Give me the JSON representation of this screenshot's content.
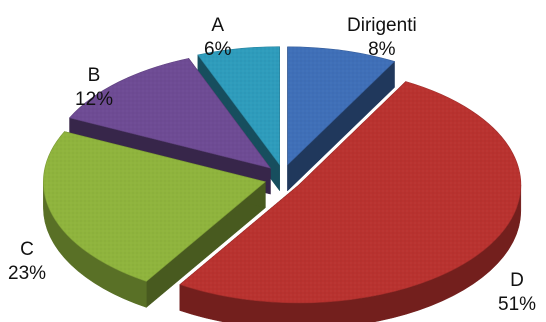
{
  "chart_data": {
    "type": "pie",
    "title": "",
    "slices": [
      {
        "name": "Dirigenti",
        "value": 8,
        "label": "8%",
        "color": "#3f6fb8"
      },
      {
        "name": "D",
        "value": 51,
        "label": "51%",
        "color": "#b9322f"
      },
      {
        "name": "C",
        "value": 23,
        "label": "23%",
        "color": "#8fb43d"
      },
      {
        "name": "B",
        "value": 12,
        "label": "12%",
        "color": "#6e4b94"
      },
      {
        "name": "A",
        "value": 6,
        "label": "6%",
        "color": "#2e9cbc"
      }
    ],
    "exploded": true,
    "three_d": true,
    "legend": "none"
  }
}
